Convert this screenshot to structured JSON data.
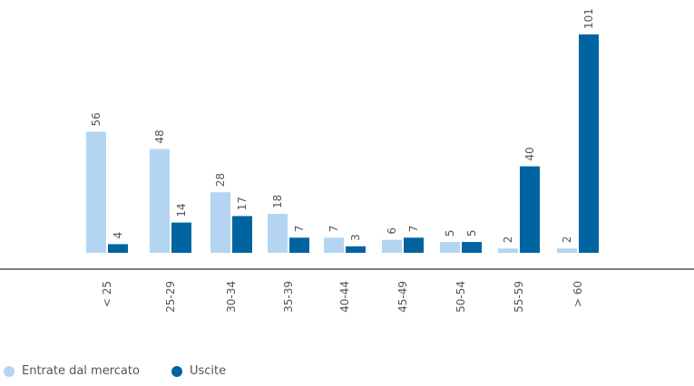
{
  "chart_data": {
    "type": "bar",
    "categories": [
      "< 25",
      "25-29",
      "30-34",
      "35-39",
      "40-44",
      "45-49",
      "50-54",
      "55-59",
      "> 60"
    ],
    "series": [
      {
        "name": "Entrate dal mercato",
        "color": "#b3d5f2",
        "values": [
          56,
          48,
          28,
          18,
          7,
          6,
          5,
          2,
          2
        ]
      },
      {
        "name": "Uscite",
        "color": "#0064a0",
        "values": [
          4,
          14,
          17,
          7,
          3,
          7,
          5,
          40,
          101
        ]
      }
    ],
    "title": "",
    "xlabel": "",
    "ylabel": "",
    "ylim": [
      0,
      101
    ],
    "grid": false,
    "legend_position": "bottom-left"
  }
}
